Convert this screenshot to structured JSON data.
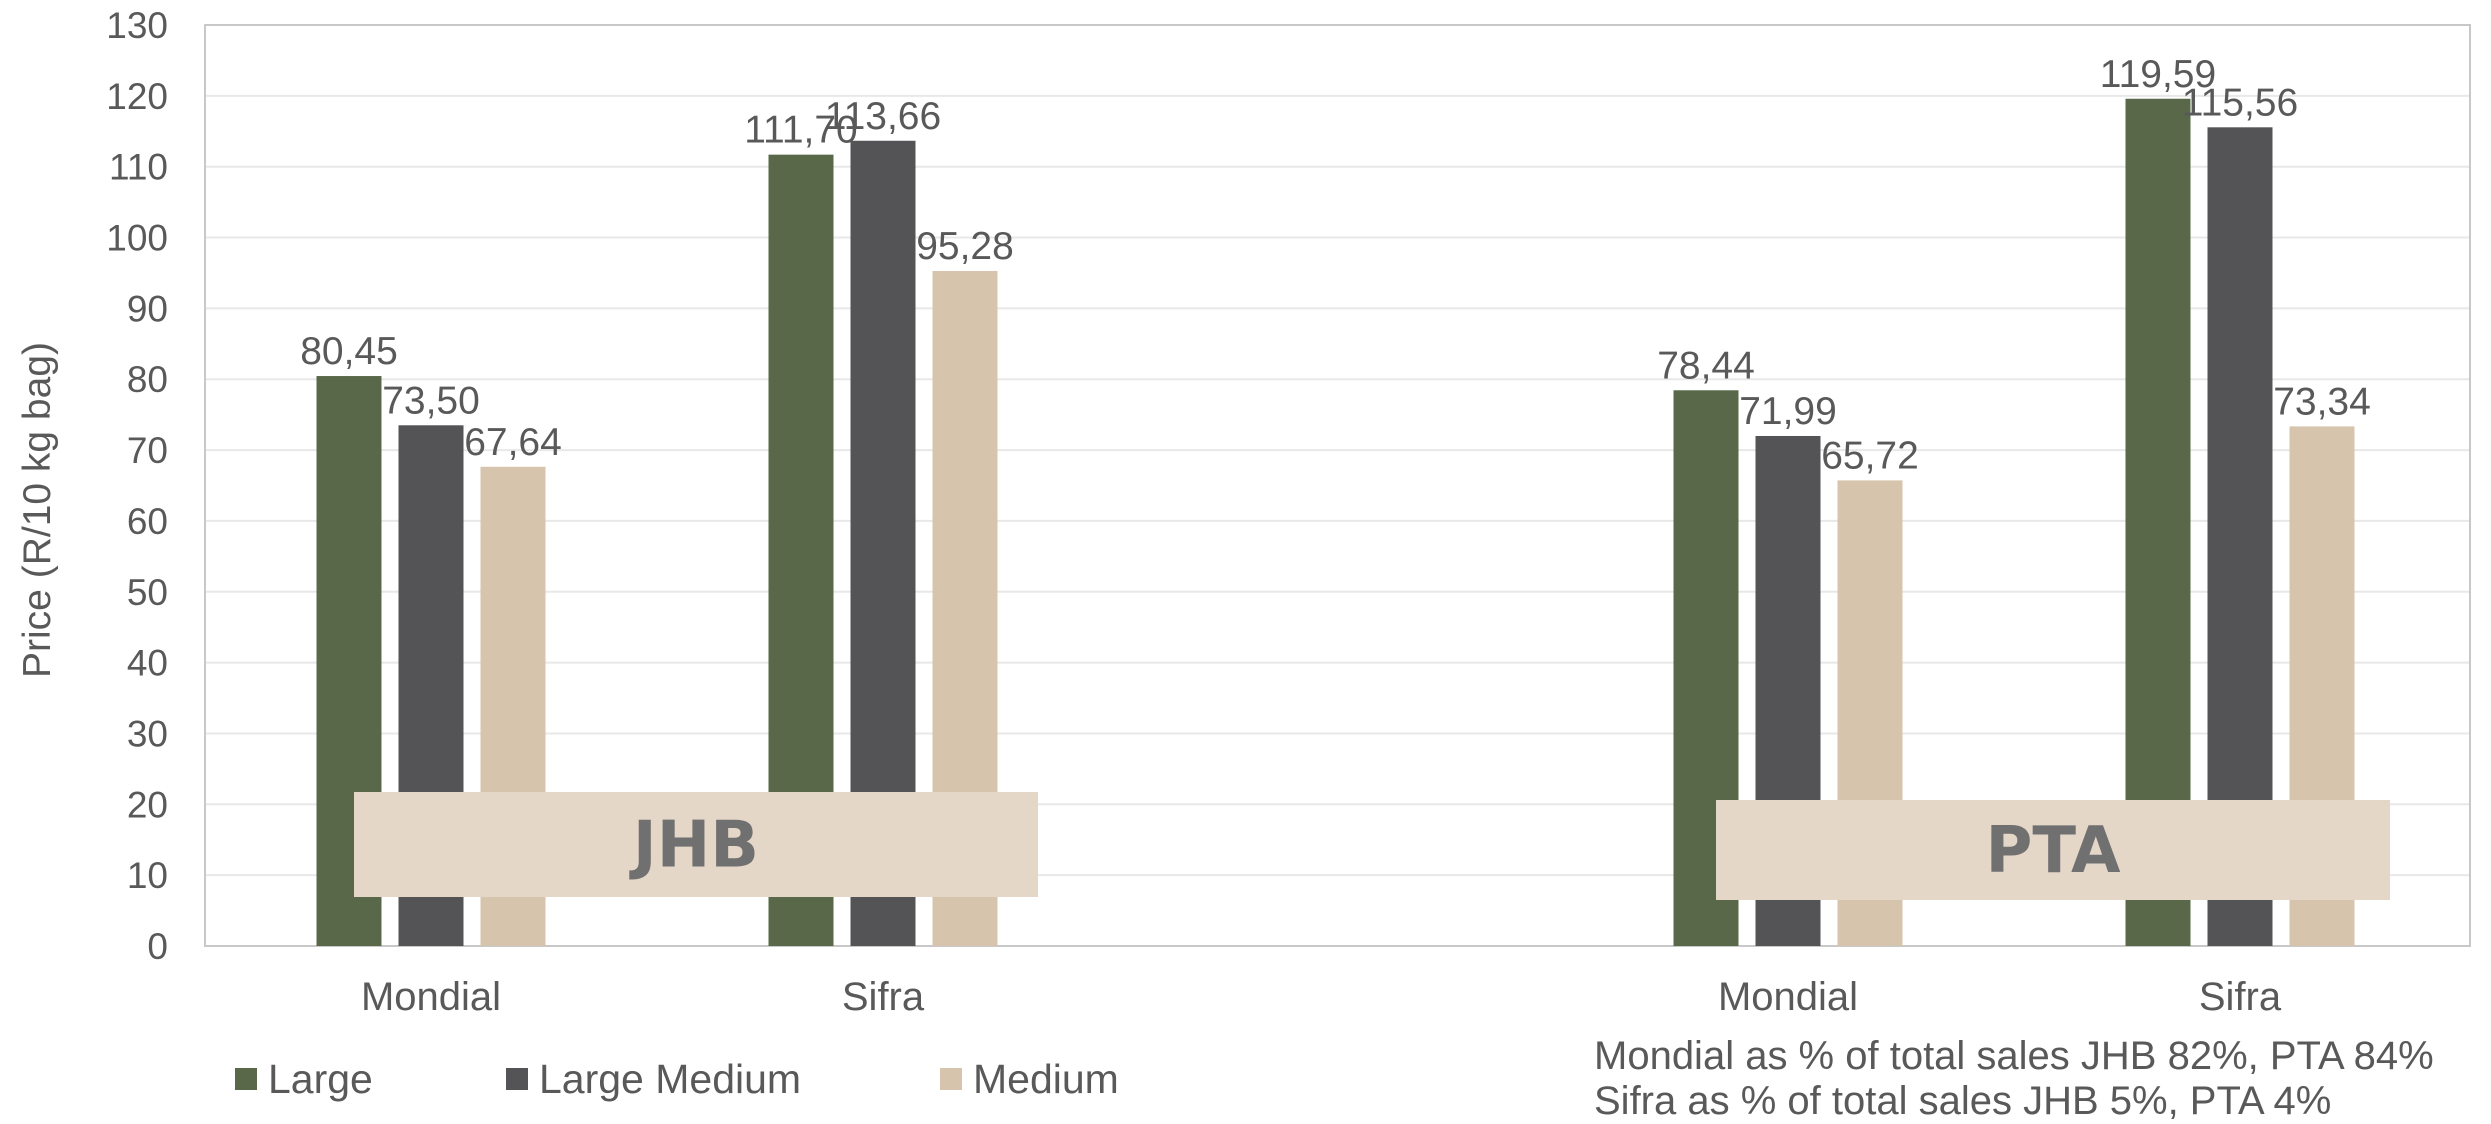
{
  "chart_data": {
    "type": "bar",
    "ylabel": "Price (R/10 kg bag)",
    "ylim": [
      0,
      130
    ],
    "yticks": [
      0,
      10,
      20,
      30,
      40,
      50,
      60,
      70,
      80,
      90,
      100,
      110,
      120,
      130
    ],
    "grid": true,
    "legend_position": "bottom-left",
    "groups": [
      {
        "label": "JHB",
        "categories": [
          "Mondial",
          "Sifra"
        ],
        "values": {
          "Large": [
            80.45,
            111.7
          ],
          "Large Medium": [
            73.5,
            113.66
          ],
          "Medium": [
            67.64,
            95.28
          ]
        },
        "labels": {
          "Large": [
            "80,45",
            "111,70"
          ],
          "Large Medium": [
            "73,50",
            "113,66"
          ],
          "Medium": [
            "67,64",
            "95,28"
          ]
        }
      },
      {
        "label": "PTA",
        "categories": [
          "Mondial",
          "Sifra"
        ],
        "values": {
          "Large": [
            78.44,
            119.59
          ],
          "Large Medium": [
            71.99,
            115.56
          ],
          "Medium": [
            65.72,
            73.34
          ]
        },
        "labels": {
          "Large": [
            "78,44",
            "119,59"
          ],
          "Large Medium": [
            "71,99",
            "115,56"
          ],
          "Medium": [
            "65,72",
            "73,34"
          ]
        }
      }
    ],
    "series": [
      {
        "name": "Large",
        "color": "#586848"
      },
      {
        "name": "Large Medium",
        "color": "#545456"
      },
      {
        "name": "Medium",
        "color": "#d6c4ad"
      }
    ],
    "annotations": [
      "Mondial as % of total sales JHB 82%, PTA 84%",
      "Sifra as % of total sales JHB 5%, PTA 4%"
    ]
  },
  "colors": {
    "grid": "#e8e8e8",
    "axis": "#c8c8c8",
    "group_box": "#e4d7c8",
    "text": "#595959"
  }
}
